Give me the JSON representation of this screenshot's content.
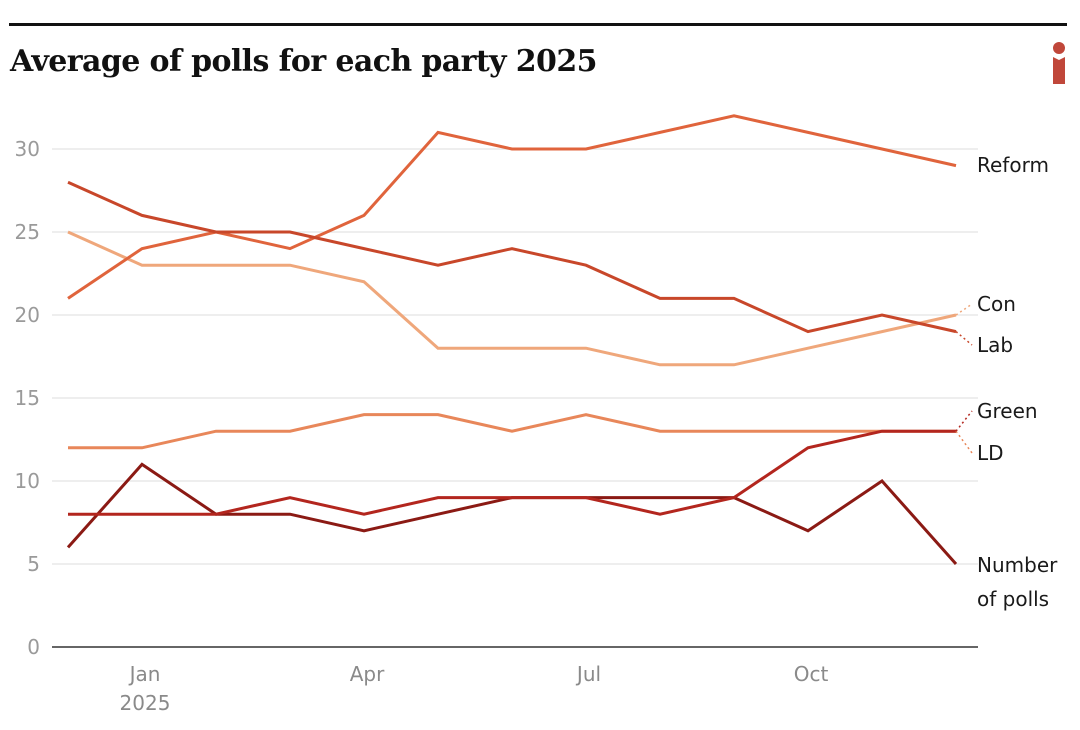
{
  "header": {
    "title": "Average of polls for each party 2025",
    "logo_icon": "i-logo-icon",
    "brand_color": "#c0473a"
  },
  "chart_data": {
    "type": "line",
    "title": "Average of polls for each party 2025",
    "xlabel": "",
    "ylabel": "",
    "x": [
      "Dec 2024",
      "Jan 2025",
      "Feb 2025",
      "Mar 2025",
      "Apr 2025",
      "May 2025",
      "Jun 2025",
      "Jul 2025",
      "Aug 2025",
      "Sep 2025",
      "Oct 2025",
      "Nov 2025",
      "Dec 2025"
    ],
    "x_tick_labels": [
      {
        "index": 1,
        "label": "Jan",
        "sublabel": "2025"
      },
      {
        "index": 4,
        "label": "Apr",
        "sublabel": ""
      },
      {
        "index": 7,
        "label": "Jul",
        "sublabel": ""
      },
      {
        "index": 10,
        "label": "Oct",
        "sublabel": ""
      }
    ],
    "ylim": [
      0,
      32
    ],
    "y_ticks": [
      0,
      5,
      10,
      15,
      20,
      25,
      30
    ],
    "grid": true,
    "legend": "direct labels at right",
    "series": [
      {
        "name": "Reform",
        "label": "Reform",
        "color": "#e0643c",
        "values": [
          21,
          24,
          25,
          24,
          26,
          31,
          30,
          30,
          31,
          32,
          31,
          30,
          29
        ]
      },
      {
        "name": "Lab",
        "label": "Lab",
        "color": "#c8472a",
        "values": [
          28,
          26,
          25,
          25,
          24,
          23,
          24,
          23,
          21,
          21,
          19,
          20,
          19
        ]
      },
      {
        "name": "Con",
        "label": "Con",
        "color": "#efa77b",
        "values": [
          25,
          23,
          23,
          23,
          22,
          18,
          18,
          18,
          17,
          17,
          18,
          19,
          20
        ]
      },
      {
        "name": "LD",
        "label": "LD",
        "color": "#e8875a",
        "values": [
          12,
          12,
          13,
          13,
          14,
          14,
          13,
          14,
          13,
          13,
          13,
          13,
          13
        ]
      },
      {
        "name": "Green",
        "label": "Green",
        "color": "#b3261e",
        "values": [
          8,
          8,
          8,
          9,
          8,
          9,
          9,
          9,
          8,
          9,
          12,
          13,
          13
        ]
      },
      {
        "name": "Number of polls",
        "label": [
          "Number",
          "of polls"
        ],
        "color": "#8b1a14",
        "values": [
          6,
          11,
          8,
          8,
          7,
          8,
          9,
          9,
          9,
          9,
          7,
          10,
          5
        ]
      }
    ]
  }
}
